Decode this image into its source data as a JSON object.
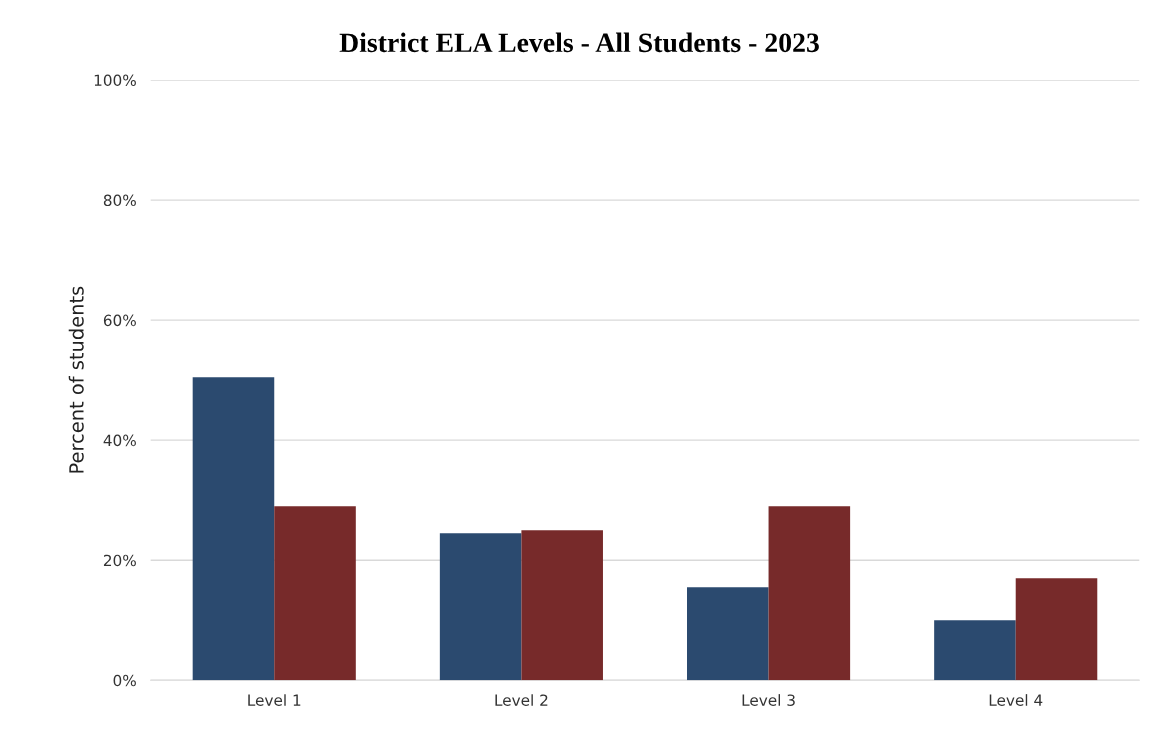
{
  "chart_data": {
    "type": "bar",
    "title": "District ELA Levels - All Students - 2023",
    "ylabel": "Percent of students",
    "categories": [
      "Level 1",
      "Level 2",
      "Level 3",
      "Level 4"
    ],
    "series": [
      {
        "color": "#2b4a6f",
        "values": [
          50.5,
          24.5,
          15.5,
          10
        ]
      },
      {
        "color": "#772a2a",
        "values": [
          29,
          25,
          29,
          17
        ]
      }
    ],
    "ylim": [
      0,
      100
    ],
    "yticks": [
      {
        "value": 0,
        "label": "0%"
      },
      {
        "value": 20,
        "label": "20%"
      },
      {
        "value": 40,
        "label": "40%"
      },
      {
        "value": 60,
        "label": "60%"
      },
      {
        "value": 80,
        "label": "80%"
      },
      {
        "value": 100,
        "label": "100%"
      }
    ],
    "grid": "y",
    "legend": false
  }
}
